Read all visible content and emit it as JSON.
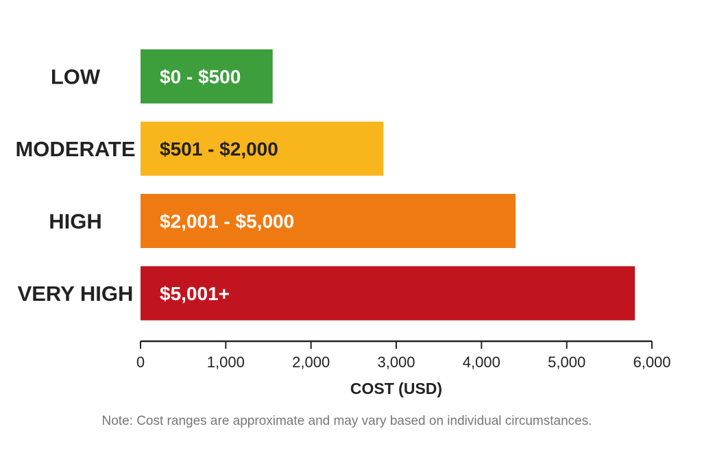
{
  "chart_data": {
    "type": "bar",
    "orientation": "horizontal",
    "categories": [
      "LOW",
      "MODERATE",
      "HIGH",
      "VERY HIGH"
    ],
    "values": [
      1550,
      2850,
      4400,
      5800
    ],
    "bar_labels": [
      "$0 - $500",
      "$501 - $2,000",
      "$2,001 - $5,000",
      "$5,001+"
    ],
    "colors": [
      "#3d9e3c",
      "#f8b51c",
      "#f07a12",
      "#c2141f"
    ],
    "bar_label_colors": [
      "#ffffff",
      "#222222",
      "#ffffff",
      "#ffffff"
    ],
    "xlabel": "COST (USD)",
    "ylabel": "",
    "xlim": [
      0,
      6000
    ],
    "xticks": [
      0,
      1000,
      2000,
      3000,
      4000,
      5000,
      6000
    ],
    "xtick_labels": [
      "0",
      "1,000",
      "2,000",
      "3,000",
      "4,000",
      "5,000",
      "6,000"
    ],
    "grid": false,
    "legend": "none"
  },
  "note": "Note: Cost ranges are approximate and may vary based on individual circumstances."
}
